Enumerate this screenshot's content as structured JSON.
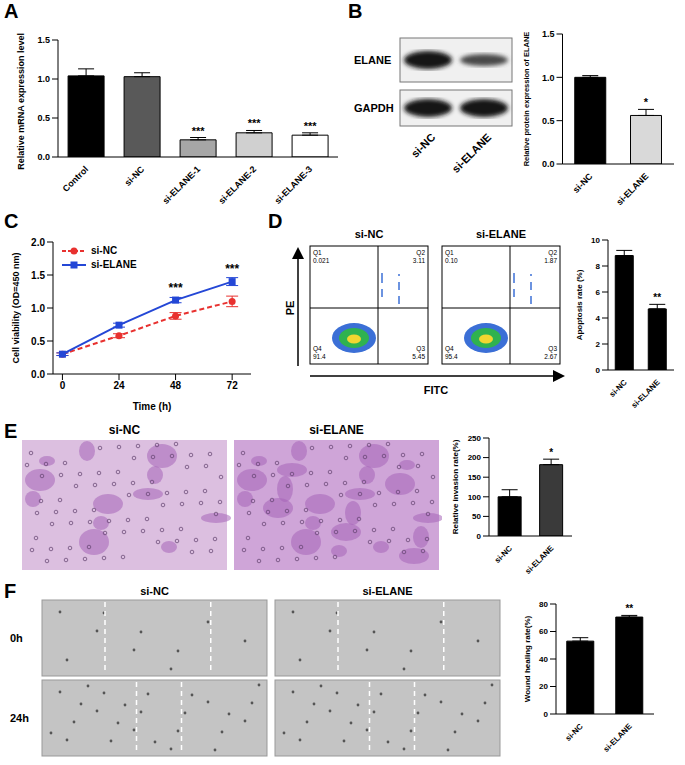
{
  "chart_data": [
    {
      "panel": "A",
      "type": "bar",
      "y_label": "Relative mRNA expression level",
      "categories": [
        "Control",
        "si-NC",
        "si-ELANE-1",
        "si-ELANE-2",
        "si-ELANE-3"
      ],
      "values": [
        1.04,
        1.03,
        0.22,
        0.31,
        0.28
      ],
      "errors": [
        0.09,
        0.05,
        0.03,
        0.03,
        0.03
      ],
      "colors": [
        "#000000",
        "#595959",
        "#a6a6a6",
        "#d0d0d0",
        "#ffffff"
      ],
      "annotations": [
        null,
        null,
        "***",
        "***",
        "***"
      ],
      "ylim": [
        0,
        1.5
      ],
      "yticks": [
        {
          "value": 0,
          "label": "0.0"
        },
        0.5,
        {
          "value": 1,
          "label": "1.0"
        },
        1.5
      ]
    },
    {
      "panel": "B",
      "type": "bar",
      "y_label": "Relative protein expression of ELANE",
      "categories": [
        "si-NC",
        "si-ELANE"
      ],
      "values": [
        1.0,
        0.56
      ],
      "errors": [
        0.02,
        0.07
      ],
      "colors": [
        "#000000",
        "#d9d9d9"
      ],
      "annotations": [
        null,
        "*"
      ],
      "ylim": [
        0,
        1.5
      ],
      "yticks": [
        {
          "value": 0,
          "label": "0.0"
        },
        0.5,
        {
          "value": 1,
          "label": "1.0"
        },
        1.5
      ]
    },
    {
      "panel": "C",
      "type": "line",
      "x_label": "Time (h)",
      "y_label": "Cell viability (OD=450 nm)",
      "x": [
        0,
        24,
        48,
        72
      ],
      "series": [
        {
          "name": "si-NC",
          "color": "#e8312f",
          "marker": "circle",
          "line_style": "dashed",
          "values": [
            0.3,
            0.58,
            0.88,
            1.1
          ],
          "errors": [
            0.02,
            0.03,
            0.05,
            0.08
          ]
        },
        {
          "name": "si-ELANE",
          "color": "#2447d6",
          "marker": "square",
          "line_style": "solid",
          "values": [
            0.3,
            0.74,
            1.12,
            1.4
          ],
          "errors": [
            0.02,
            0.03,
            0.04,
            0.06
          ]
        }
      ],
      "annotations": [
        null,
        null,
        "***",
        "***"
      ],
      "xlim": [
        -4,
        80
      ],
      "xticks": [
        0,
        24,
        48,
        72
      ],
      "ylim": [
        0,
        2
      ],
      "yticks": [
        {
          "value": 0,
          "label": "0.0"
        },
        0.5,
        {
          "value": 1,
          "label": "1.0"
        },
        1.5,
        {
          "value": 2,
          "label": "2.0"
        }
      ],
      "legend": "upper left"
    },
    {
      "panel": "D",
      "type": "bar",
      "y_label": "Apoptosis rate (%)",
      "categories": [
        "si-NC",
        "si-ELANE"
      ],
      "values": [
        8.8,
        4.7
      ],
      "errors": [
        0.4,
        0.35
      ],
      "colors": [
        "#000000",
        "#000000"
      ],
      "annotations": [
        null,
        "**"
      ],
      "ylim": [
        0,
        10
      ],
      "yticks": [
        0,
        2,
        4,
        6,
        8,
        10
      ]
    },
    {
      "panel": "E",
      "type": "bar",
      "y_label": "Relative invasion rate(%)",
      "categories": [
        "si-NC",
        "si-ELANE"
      ],
      "values": [
        100,
        182
      ],
      "errors": [
        18,
        14
      ],
      "colors": [
        "#000000",
        "#3a3a3a"
      ],
      "annotations": [
        null,
        "*"
      ],
      "ylim": [
        0,
        250
      ],
      "yticks": [
        0,
        50,
        100,
        150,
        200,
        250
      ]
    },
    {
      "panel": "F",
      "type": "bar",
      "y_label": "Wound healing rate(%)",
      "categories": [
        "si-NC",
        "si-ELANE"
      ],
      "values": [
        53,
        70.5
      ],
      "errors": [
        2.5,
        1.2
      ],
      "colors": [
        "#000000",
        "#000000"
      ],
      "annotations": [
        null,
        "**"
      ],
      "ylim": [
        0,
        80
      ],
      "yticks": [
        0,
        20,
        40,
        60,
        80
      ]
    }
  ],
  "images": [
    {
      "panel": "B",
      "type": "western_blot",
      "rows": [
        "ELANE",
        "GAPDH"
      ],
      "columns": [
        "si-NC",
        "si-ELANE"
      ]
    },
    {
      "panel": "D",
      "type": "flow_cytometry",
      "x_label": "FITC",
      "y_label": "PE",
      "plots": [
        {
          "title": "si-NC",
          "quadrants": [
            {
              "name": "Q1",
              "value": "0.021"
            },
            {
              "name": "Q2",
              "value": "3.11"
            },
            {
              "name": "Q3",
              "value": "5.45"
            },
            {
              "name": "Q4",
              "value": "91.4"
            }
          ]
        },
        {
          "title": "si-ELANE",
          "quadrants": [
            {
              "name": "Q1",
              "value": "0.10"
            },
            {
              "name": "Q2",
              "value": "1.87"
            },
            {
              "name": "Q3",
              "value": "2.67"
            },
            {
              "name": "Q4",
              "value": "95.4"
            }
          ]
        }
      ]
    },
    {
      "panel": "E",
      "type": "microscopy",
      "columns": [
        "si-NC",
        "si-ELANE"
      ]
    },
    {
      "panel": "F",
      "type": "microscopy",
      "columns": [
        "si-NC",
        "si-ELANE"
      ],
      "rows": [
        "0h",
        "24h"
      ]
    }
  ]
}
